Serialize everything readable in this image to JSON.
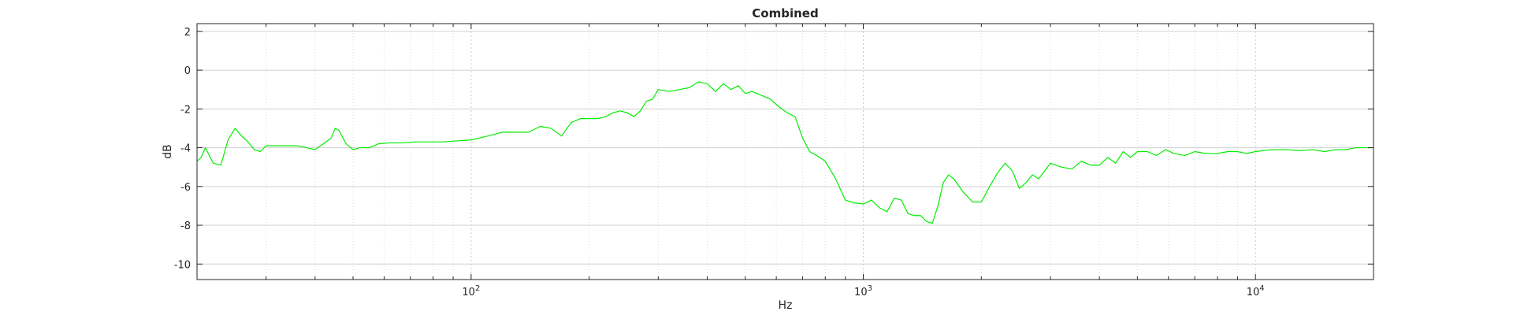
{
  "chart_data": {
    "type": "line",
    "title": "Combined",
    "xlabel": "Hz",
    "ylabel": "dB",
    "xscale": "log",
    "xlim": [
      20,
      20000
    ],
    "ylim": [
      -10.8,
      2.4
    ],
    "xticks": [
      {
        "value": 100,
        "base": "10",
        "exp": "2"
      },
      {
        "value": 1000,
        "base": "10",
        "exp": "3"
      },
      {
        "value": 10000,
        "base": "10",
        "exp": "4"
      }
    ],
    "yticks": [
      {
        "value": 2,
        "label": "2"
      },
      {
        "value": 0,
        "label": "0"
      },
      {
        "value": -2,
        "label": "-2"
      },
      {
        "value": -4,
        "label": "-4"
      },
      {
        "value": -6,
        "label": "-6"
      },
      {
        "value": -8,
        "label": "-8"
      },
      {
        "value": -10,
        "label": "-10"
      }
    ],
    "grid": true,
    "series": [
      {
        "name": "Combined",
        "color": "#00ee00",
        "x": [
          20,
          20.5,
          21,
          22,
          23,
          24,
          25,
          26,
          27,
          28,
          29,
          30,
          32,
          34,
          36,
          38,
          40,
          42,
          44,
          45,
          46,
          48,
          50,
          52,
          55,
          58,
          62,
          67,
          72,
          78,
          85,
          92,
          100,
          110,
          120,
          130,
          140,
          150,
          160,
          170,
          180,
          190,
          200,
          210,
          220,
          230,
          240,
          250,
          260,
          270,
          280,
          290,
          300,
          320,
          340,
          360,
          380,
          400,
          420,
          440,
          460,
          480,
          500,
          520,
          550,
          580,
          610,
          640,
          670,
          700,
          730,
          760,
          800,
          850,
          900,
          950,
          1000,
          1050,
          1100,
          1150,
          1200,
          1250,
          1300,
          1350,
          1400,
          1450,
          1500,
          1550,
          1600,
          1650,
          1700,
          1800,
          1900,
          2000,
          2100,
          2200,
          2300,
          2400,
          2500,
          2600,
          2700,
          2800,
          2900,
          3000,
          3200,
          3400,
          3600,
          3800,
          4000,
          4200,
          4400,
          4600,
          4800,
          5000,
          5300,
          5600,
          5900,
          6200,
          6600,
          7000,
          7500,
          8000,
          8500,
          9000,
          9500,
          10000,
          11000,
          12000,
          13000,
          14000,
          15000,
          16000,
          17000,
          18000,
          19000,
          20000
        ],
        "y": [
          -4.7,
          -4.5,
          -4.0,
          -4.8,
          -4.9,
          -3.6,
          -3.0,
          -3.4,
          -3.7,
          -4.1,
          -4.2,
          -3.9,
          -3.9,
          -3.9,
          -3.9,
          -4.0,
          -4.1,
          -3.8,
          -3.5,
          -3.0,
          -3.1,
          -3.8,
          -4.1,
          -4.0,
          -4.0,
          -3.8,
          -3.75,
          -3.75,
          -3.7,
          -3.7,
          -3.7,
          -3.65,
          -3.6,
          -3.4,
          -3.2,
          -3.2,
          -3.2,
          -2.9,
          -3.0,
          -3.4,
          -2.7,
          -2.5,
          -2.5,
          -2.5,
          -2.4,
          -2.2,
          -2.1,
          -2.2,
          -2.4,
          -2.1,
          -1.6,
          -1.5,
          -1.0,
          -1.1,
          -1.0,
          -0.9,
          -0.6,
          -0.7,
          -1.1,
          -0.7,
          -1.0,
          -0.8,
          -1.2,
          -1.1,
          -1.3,
          -1.5,
          -1.9,
          -2.2,
          -2.4,
          -3.5,
          -4.2,
          -4.4,
          -4.7,
          -5.6,
          -6.7,
          -6.85,
          -6.9,
          -6.7,
          -7.1,
          -7.3,
          -6.6,
          -6.7,
          -7.4,
          -7.5,
          -7.5,
          -7.8,
          -7.9,
          -7.0,
          -5.8,
          -5.4,
          -5.6,
          -6.3,
          -6.8,
          -6.8,
          -6.0,
          -5.3,
          -4.8,
          -5.2,
          -6.1,
          -5.8,
          -5.4,
          -5.6,
          -5.2,
          -4.8,
          -5.0,
          -5.1,
          -4.7,
          -4.9,
          -4.9,
          -4.5,
          -4.8,
          -4.2,
          -4.5,
          -4.2,
          -4.2,
          -4.4,
          -4.1,
          -4.3,
          -4.4,
          -4.2,
          -4.3,
          -4.3,
          -4.2,
          -4.2,
          -4.3,
          -4.2,
          -4.1,
          -4.1,
          -4.15,
          -4.1,
          -4.2,
          -4.1,
          -4.1,
          -4.0,
          -4.0,
          -4.0
        ]
      }
    ]
  }
}
